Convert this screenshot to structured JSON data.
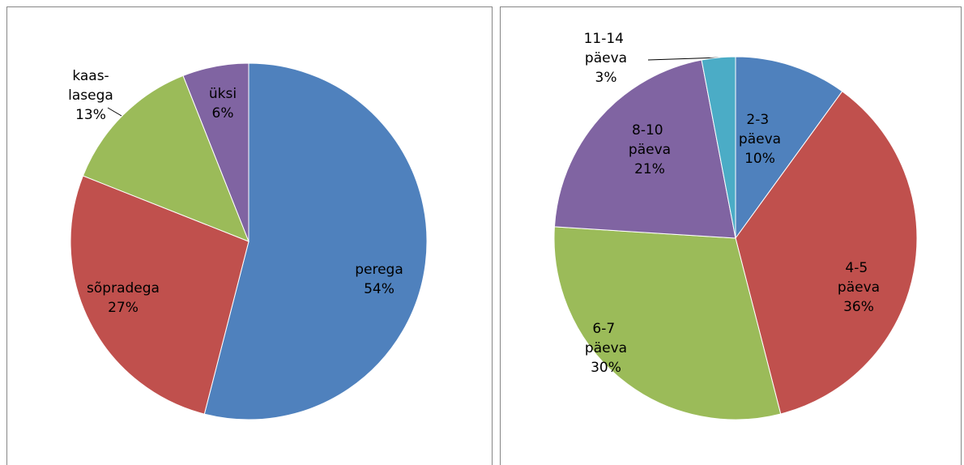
{
  "chart_data": [
    {
      "type": "pie",
      "categories": [
        "perega",
        "sõpradega",
        "kaas-lasega",
        "üksi"
      ],
      "values": [
        54,
        27,
        13,
        6
      ],
      "value_labels": [
        "54%",
        "27%",
        "13%",
        "6%"
      ],
      "colors": [
        "#4f81bd",
        "#c0504d",
        "#9bbb59",
        "#8064a2"
      ]
    },
    {
      "type": "pie",
      "categories": [
        "2-3 päeva",
        "4-5 päeva",
        "6-7 päeva",
        "8-10 päeva",
        "11-14 päeva"
      ],
      "values": [
        10,
        36,
        30,
        21,
        3
      ],
      "value_labels": [
        "10%",
        "36%",
        "30%",
        "21%",
        "3%"
      ],
      "colors": [
        "#4f81bd",
        "#c0504d",
        "#9bbb59",
        "#8064a2",
        "#4bacc6"
      ]
    }
  ]
}
